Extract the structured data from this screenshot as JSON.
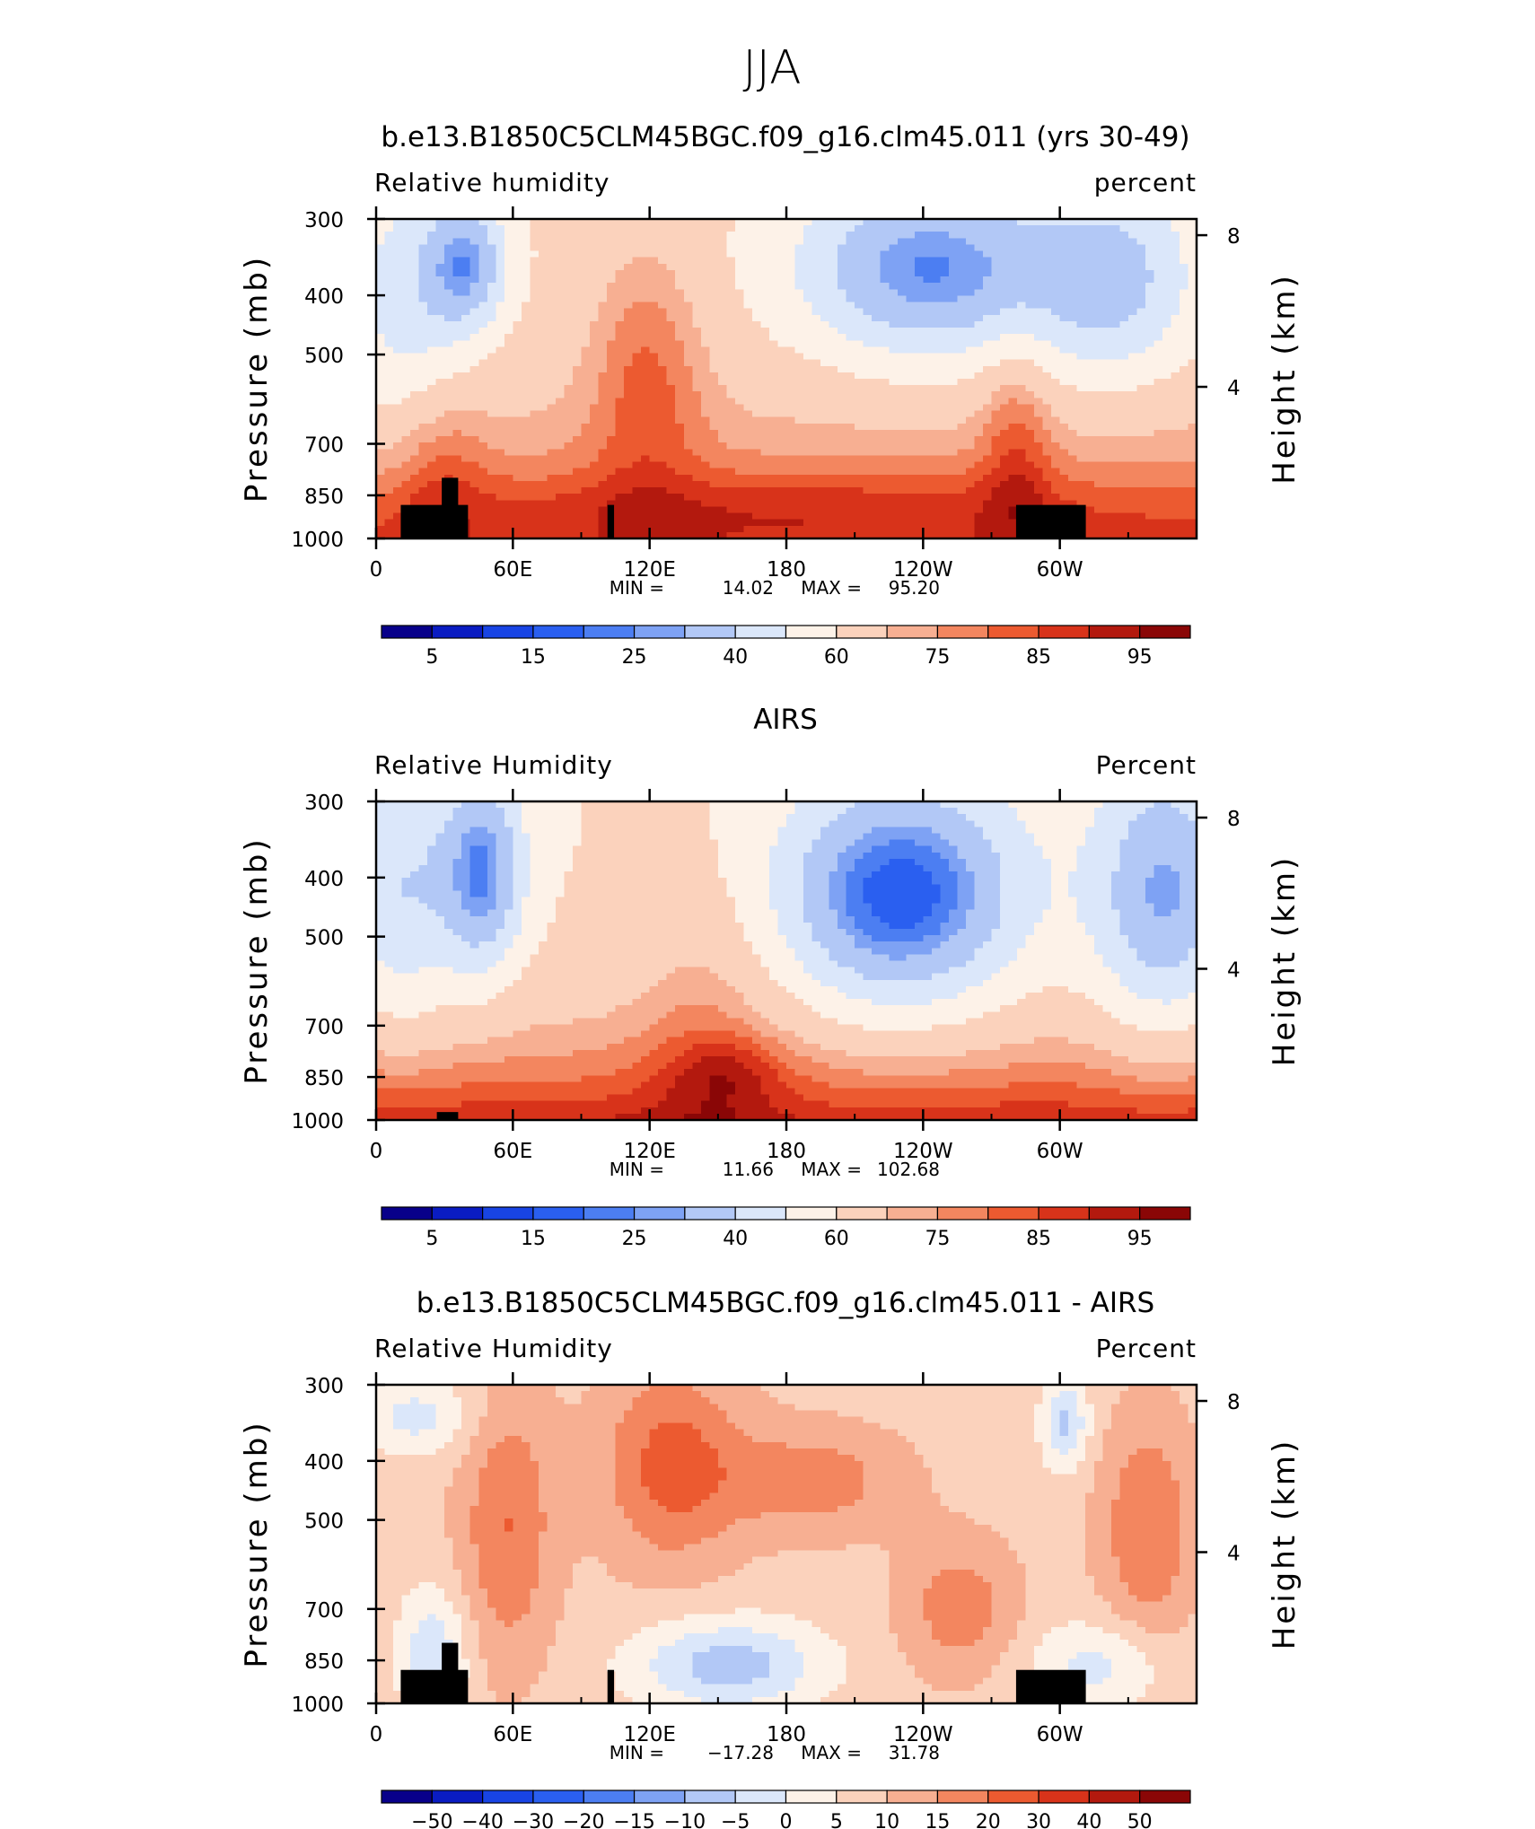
{
  "page": {
    "season": "JJA"
  },
  "colors": {
    "rh_palette": [
      "#08008a",
      "#0a1cc2",
      "#1844e4",
      "#2a5ff0",
      "#4c7ef2",
      "#7ea2f4",
      "#b2c8f6",
      "#dbe7fa",
      "#fdf2e8",
      "#fbd2bc",
      "#f7af92",
      "#f3865f",
      "#ec5a30",
      "#d8331a",
      "#b3190e",
      "#8a0606"
    ],
    "diff_palette": [
      "#08008a",
      "#0a1cc2",
      "#1844e4",
      "#2a5ff0",
      "#4c7ef2",
      "#7ea2f4",
      "#b2c8f6",
      "#dbe7fa",
      "#fdf2e8",
      "#fbd2bc",
      "#f7af92",
      "#f3865f",
      "#ec5a30",
      "#d8331a",
      "#b3190e",
      "#8a0606"
    ],
    "terrain": "#000000"
  },
  "axes": {
    "left_label": "Pressure (mb)",
    "right_label": "Height (km)",
    "pressure_ticks": [
      "300",
      "400",
      "500",
      "700",
      "850",
      "1000"
    ],
    "height_ticks": [
      "8",
      "4"
    ],
    "lon_ticks": [
      "0",
      "60E",
      "120E",
      "180",
      "120W",
      "60W"
    ]
  },
  "chart_data": [
    {
      "type": "heatmap",
      "title": "b.e13.B1850C5CLM45BGC.f09_g16.clm45.011 (yrs 30-49)",
      "variable": "Relative humidity",
      "units": "percent",
      "xlabel": "",
      "ylabel": "Pressure (mb)",
      "ylabel_right": "Height (km)",
      "x_ticks": [
        "0",
        "60E",
        "120E",
        "180",
        "120W",
        "60W"
      ],
      "y_ticks": [
        300,
        400,
        500,
        700,
        850,
        1000
      ],
      "ylim": [
        1000,
        300
      ],
      "y_scale": "log",
      "stats": {
        "min_label": "MIN =",
        "min": "14.02",
        "max_label": "MAX =",
        "max": "95.20"
      },
      "colorbar_labels": [
        "5",
        "15",
        "25",
        "40",
        "60",
        "75",
        "85",
        "95"
      ],
      "colorbar_levels": [
        5,
        10,
        15,
        20,
        25,
        30,
        40,
        50,
        60,
        70,
        75,
        80,
        85,
        90,
        95
      ],
      "colorbar_range": [
        0,
        100
      ],
      "mode": "model",
      "grid": false
    },
    {
      "type": "heatmap",
      "title": "AIRS",
      "variable": "Relative Humidity",
      "units": "Percent",
      "xlabel": "",
      "ylabel": "Pressure (mb)",
      "ylabel_right": "Height (km)",
      "x_ticks": [
        "0",
        "60E",
        "120E",
        "180",
        "120W",
        "60W"
      ],
      "y_ticks": [
        300,
        400,
        500,
        700,
        850,
        1000
      ],
      "ylim": [
        1000,
        300
      ],
      "y_scale": "log",
      "stats": {
        "min_label": "MIN =",
        "min": "11.66",
        "max_label": "MAX =",
        "max": "102.68"
      },
      "colorbar_labels": [
        "5",
        "15",
        "25",
        "40",
        "60",
        "75",
        "85",
        "95"
      ],
      "colorbar_levels": [
        5,
        10,
        15,
        20,
        25,
        30,
        40,
        50,
        60,
        70,
        75,
        80,
        85,
        90,
        95
      ],
      "colorbar_range": [
        0,
        100
      ],
      "mode": "obs",
      "grid": false
    },
    {
      "type": "heatmap",
      "title": "b.e13.B1850C5CLM45BGC.f09_g16.clm45.011 - AIRS",
      "variable": "Relative Humidity",
      "units": "Percent",
      "xlabel": "",
      "ylabel": "Pressure (mb)",
      "ylabel_right": "Height (km)",
      "x_ticks": [
        "0",
        "60E",
        "120E",
        "180",
        "120W",
        "60W"
      ],
      "y_ticks": [
        300,
        400,
        500,
        700,
        850,
        1000
      ],
      "ylim": [
        1000,
        300
      ],
      "y_scale": "log",
      "stats": {
        "min_label": "MIN =",
        "min": "−17.28",
        "max_label": "MAX =",
        "max": "31.78"
      },
      "colorbar_labels": [
        "−50",
        "−40",
        "−30",
        "−20",
        "−15",
        "−10",
        "−5",
        "0",
        "5",
        "10",
        "15",
        "20",
        "30",
        "40",
        "50"
      ],
      "colorbar_levels": [
        -50,
        -40,
        -30,
        -20,
        -15,
        -10,
        -5,
        0,
        5,
        10,
        15,
        20,
        30,
        40,
        50
      ],
      "colorbar_range": [
        -60,
        60
      ],
      "mode": "diff",
      "grid": false
    }
  ]
}
